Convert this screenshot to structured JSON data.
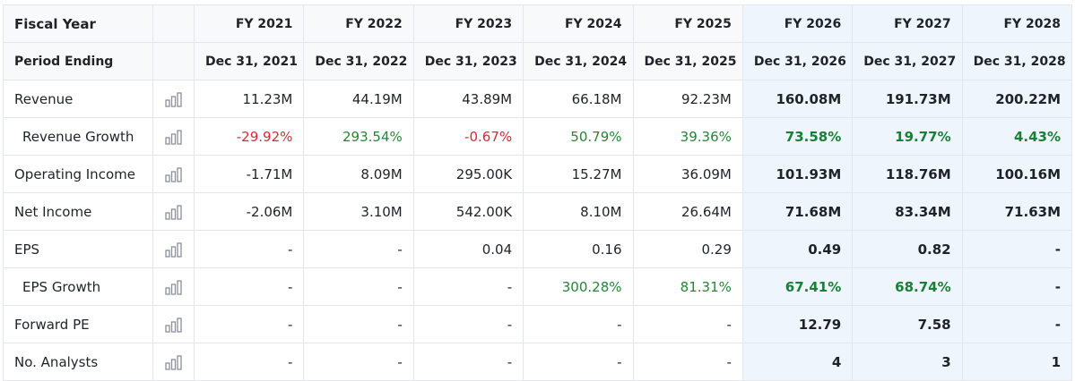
{
  "header": {
    "fiscal_year_label": "Fiscal Year",
    "period_ending_label": "Period Ending",
    "years": [
      "FY 2021",
      "FY 2022",
      "FY 2023",
      "FY 2024",
      "FY 2025",
      "FY 2026",
      "FY 2027",
      "FY 2028"
    ],
    "period_ends": [
      "Dec 31, 2021",
      "Dec 31, 2022",
      "Dec 31, 2023",
      "Dec 31, 2024",
      "Dec 31, 2025",
      "Dec 31, 2026",
      "Dec 31, 2027",
      "Dec 31, 2028"
    ],
    "forecast_start_index": 5
  },
  "chart_icon": "bar-chart-icon",
  "colors": {
    "negative": "#d6293b",
    "positive": "#238636",
    "forecast_bg": "#eef5fd",
    "border": "#e3e6ea"
  },
  "rows": [
    {
      "label": "Revenue",
      "indent": false,
      "values": [
        "11.23M",
        "44.19M",
        "43.89M",
        "66.18M",
        "92.23M",
        "160.08M",
        "191.73M",
        "200.22M"
      ]
    },
    {
      "label": "Revenue Growth",
      "indent": true,
      "values": [
        "-29.92%",
        "293.54%",
        "-0.67%",
        "50.79%",
        "39.36%",
        "73.58%",
        "19.77%",
        "4.43%"
      ]
    },
    {
      "label": "Operating Income",
      "indent": false,
      "values": [
        "-1.71M",
        "8.09M",
        "295.00K",
        "15.27M",
        "36.09M",
        "101.93M",
        "118.76M",
        "100.16M"
      ]
    },
    {
      "label": "Net Income",
      "indent": false,
      "values": [
        "-2.06M",
        "3.10M",
        "542.00K",
        "8.10M",
        "26.64M",
        "71.68M",
        "83.34M",
        "71.63M"
      ]
    },
    {
      "label": "EPS",
      "indent": false,
      "values": [
        "-",
        "-",
        "0.04",
        "0.16",
        "0.29",
        "0.49",
        "0.82",
        "-"
      ]
    },
    {
      "label": "EPS Growth",
      "indent": true,
      "values": [
        "-",
        "-",
        "-",
        "300.28%",
        "81.31%",
        "67.41%",
        "68.74%",
        "-"
      ]
    },
    {
      "label": "Forward PE",
      "indent": false,
      "values": [
        "-",
        "-",
        "-",
        "-",
        "-",
        "12.79",
        "7.58",
        "-"
      ]
    },
    {
      "label": "No. Analysts",
      "indent": false,
      "values": [
        "-",
        "-",
        "-",
        "-",
        "-",
        "4",
        "3",
        "1"
      ]
    }
  ]
}
